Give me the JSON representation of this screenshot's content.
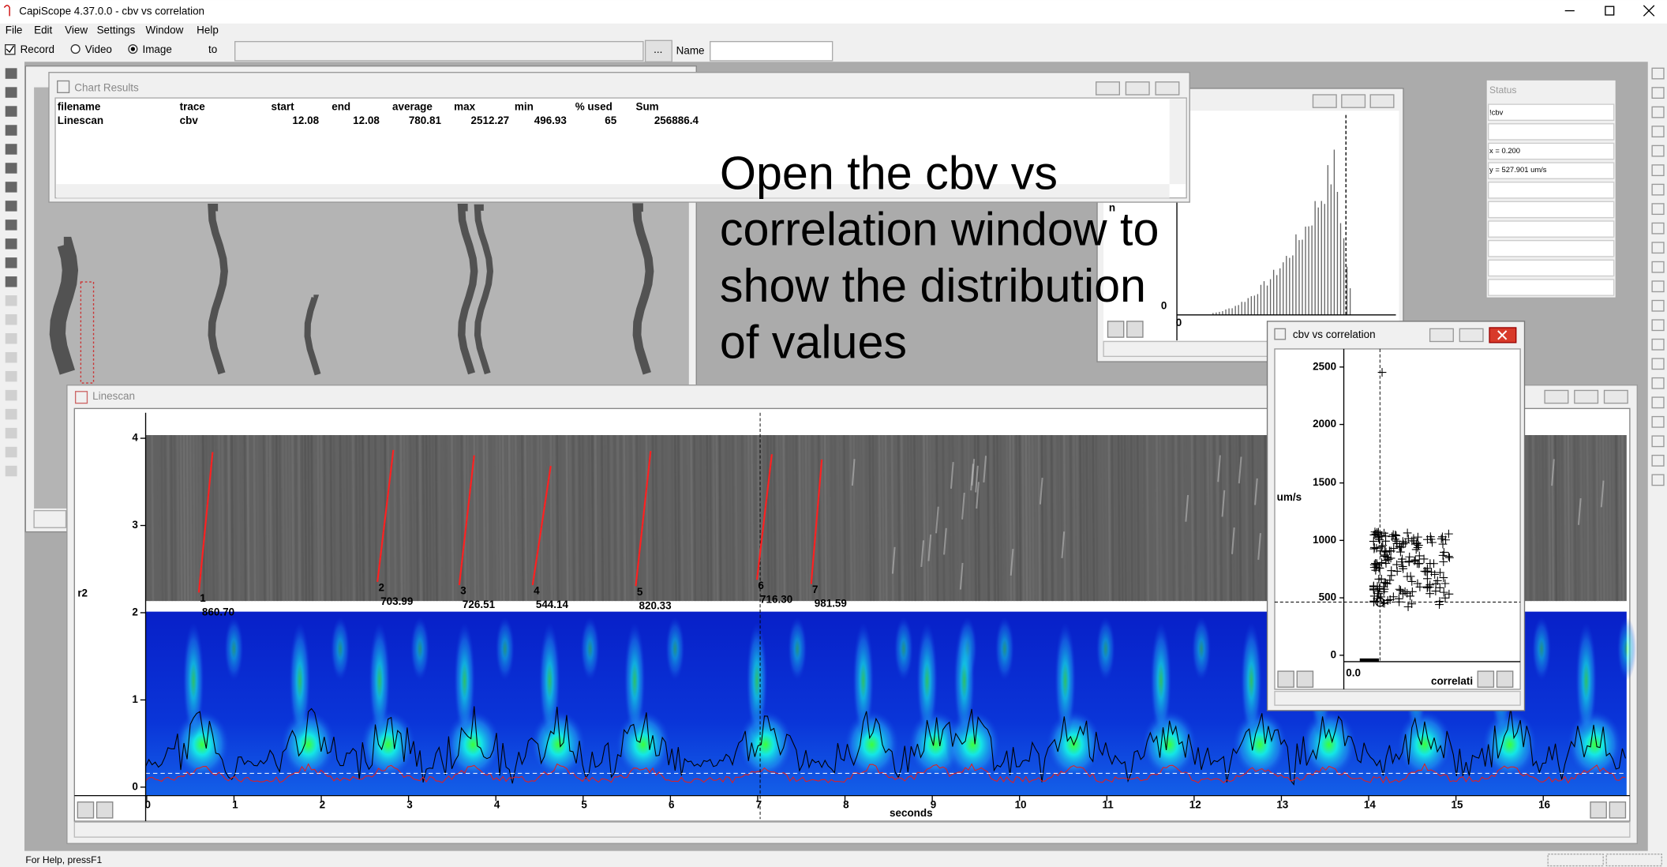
{
  "window_title": "CapiScope 4.37.0.0 - cbv vs correlation",
  "menu": [
    "File",
    "Edit",
    "View",
    "Settings",
    "Window",
    "Help"
  ],
  "toolbar": {
    "record": "Record",
    "video": "Video",
    "image": "Image",
    "to": "to",
    "browse": "...",
    "name": "Name"
  },
  "chart_results": {
    "title": "Chart Results",
    "columns": [
      "filename",
      "trace",
      "start",
      "end",
      "average",
      "max",
      "min",
      "% used",
      "Sum"
    ],
    "rows": [
      [
        "Linescan",
        "cbv",
        "12.08",
        "12.08",
        "780.81",
        "2512.27",
        "496.93",
        "65",
        "256886.4"
      ]
    ]
  },
  "annotation": [
    "Open the cbv vs",
    "correlation window to",
    "show the distribution",
    "of values"
  ],
  "histogram": {
    "y_label": "n",
    "y_tick": "0",
    "x_tick": "0"
  },
  "status_panel": {
    "title": "Status",
    "lines": [
      "!cbv",
      "x = 0.200",
      "y = 527.901 um/s"
    ]
  },
  "linescan": {
    "title": "Linescan",
    "y_label": "r2",
    "x_label": "seconds",
    "yticks": [
      "4",
      "3",
      "2",
      "1",
      "0"
    ],
    "xticks": [
      "0",
      "1",
      "2",
      "3",
      "4",
      "5",
      "6",
      "7",
      "8",
      "9",
      "10",
      "11",
      "12",
      "13",
      "14",
      "15",
      "16"
    ],
    "markers": [
      {
        "label": "1",
        "value": "860.70"
      },
      {
        "label": "2",
        "value": "703.99"
      },
      {
        "label": "3",
        "value": "726.51"
      },
      {
        "label": "4",
        "value": "544.14"
      },
      {
        "label": "5",
        "value": "820.33"
      },
      {
        "label": "6",
        "value": "716.30"
      },
      {
        "label": "7",
        "value": "981.59"
      }
    ]
  },
  "scatter": {
    "title": "cbv vs correlation",
    "y_label": "um/s",
    "yticks": [
      "2500",
      "2000",
      "1500",
      "1000",
      "500",
      "0"
    ],
    "x_tick": "0.0",
    "x_label": "correlati"
  },
  "status_bar": "For Help, pressF1"
}
